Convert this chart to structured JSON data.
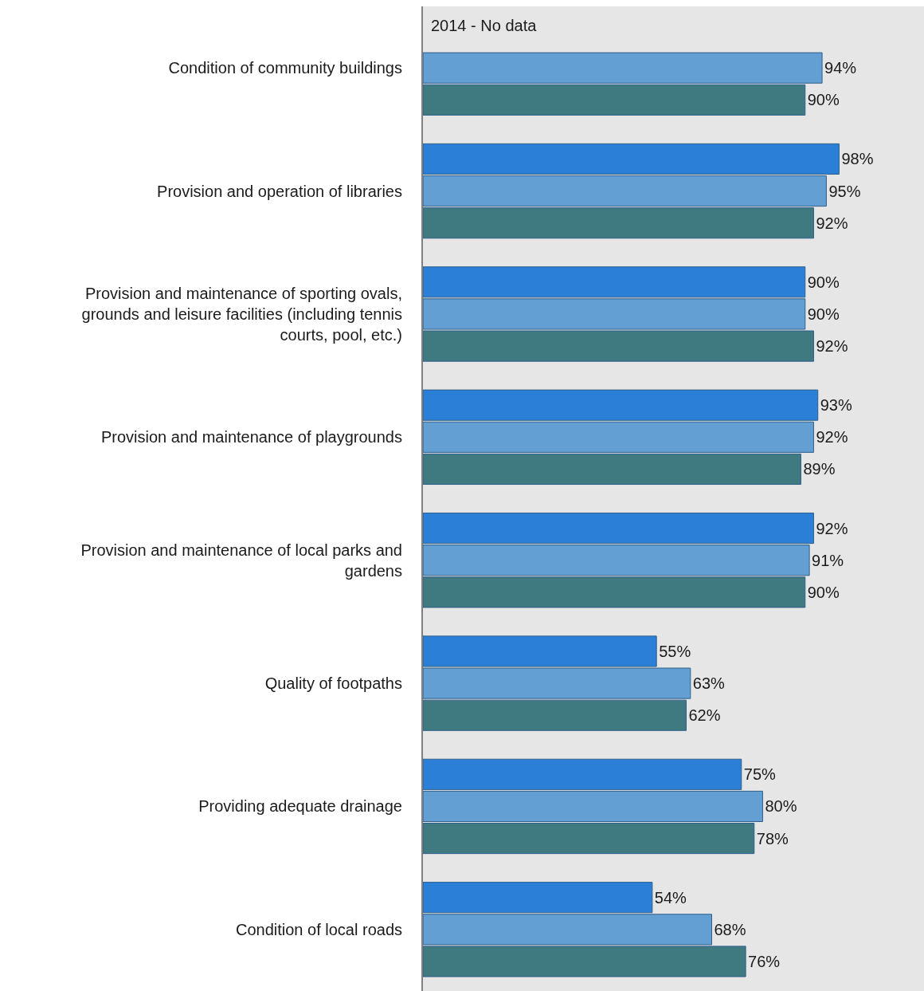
{
  "chart_data": {
    "type": "bar",
    "orientation": "horizontal",
    "categories": [
      "Condition of community buildings",
      "Provision and operation of libraries",
      "Provision and maintenance of sporting ovals, grounds and leisure facilities (including tennis courts, pool, etc.)",
      "Provision and maintenance of playgrounds",
      "Provision and maintenance of local parks and gardens",
      "Quality of footpaths",
      "Providing adequate drainage",
      "Condition of local roads"
    ],
    "series": [
      {
        "color": "#2b7fd6",
        "values": [
          null,
          98,
          90,
          93,
          92,
          55,
          75,
          54
        ],
        "value_labels": [
          null,
          "98%",
          "90%",
          "93%",
          "92%",
          "55%",
          "75%",
          "54%"
        ]
      },
      {
        "color": "#639fd3",
        "values": [
          94,
          95,
          90,
          92,
          91,
          63,
          80,
          68
        ],
        "value_labels": [
          "94%",
          "95%",
          "90%",
          "92%",
          "91%",
          "63%",
          "80%",
          "68%"
        ]
      },
      {
        "color": "#3f7a80",
        "values": [
          90,
          92,
          92,
          89,
          90,
          62,
          78,
          76
        ],
        "value_labels": [
          "90%",
          "92%",
          "92%",
          "89%",
          "90%",
          "62%",
          "78%",
          "76%"
        ]
      }
    ],
    "xlim": [
      0,
      118
    ],
    "tick_labels": "y",
    "grid": false,
    "legend": false,
    "annotations": [
      {
        "text": "2014 - No data",
        "x": 0,
        "y": "Condition of community buildings"
      }
    ]
  }
}
